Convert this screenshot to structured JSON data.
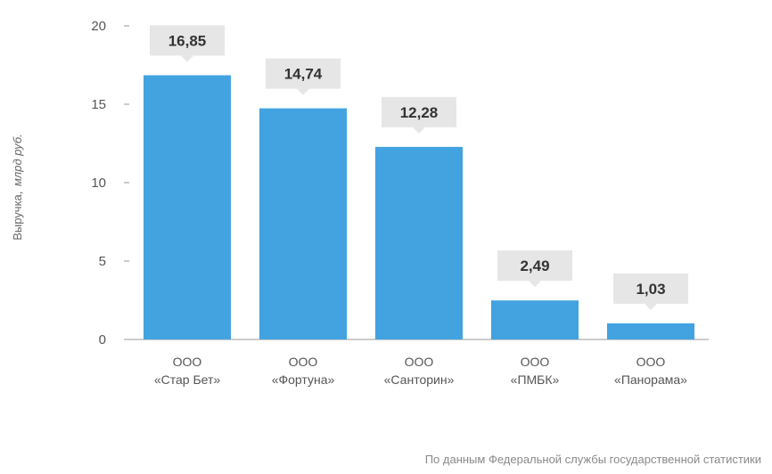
{
  "chart_data": {
    "type": "bar",
    "categories": [
      [
        "ООО",
        "«Стар Бет»"
      ],
      [
        "ООО",
        "«Фортуна»"
      ],
      [
        "ООО",
        "«Санторин»"
      ],
      [
        "ООО",
        "«ПМБК»"
      ],
      [
        "ООО",
        "«Панорама»"
      ]
    ],
    "values": [
      16.85,
      14.74,
      12.28,
      2.49,
      1.03
    ],
    "value_labels": [
      "16,85",
      "14,74",
      "12,28",
      "2,49",
      "1,03"
    ],
    "ylabel_main": "Выручка,",
    "ylabel_unit": "млрд руб.",
    "ylim": [
      0,
      20
    ],
    "yticks": [
      0,
      5,
      10,
      15,
      20
    ],
    "grid": false,
    "colors": {
      "bar": "#42a3e0",
      "label_box": "#e6e6e6",
      "axis": "#999999"
    }
  },
  "source_note": "По данным Федеральной службы государственной статистики"
}
